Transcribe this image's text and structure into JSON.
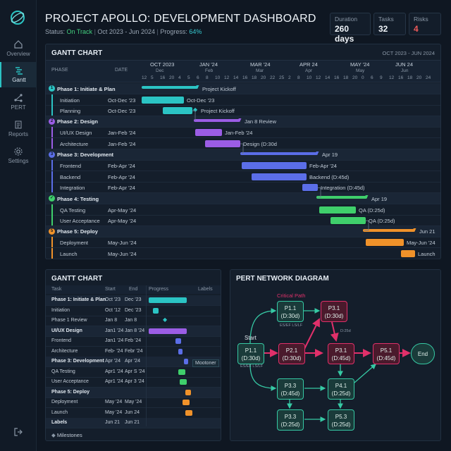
{
  "sidebar": {
    "items": [
      {
        "label": "Overview"
      },
      {
        "label": "Gantt"
      },
      {
        "label": "PERT"
      },
      {
        "label": "Reports"
      },
      {
        "label": "Settings"
      }
    ]
  },
  "header": {
    "title": "PROJECT APOLLO: DEVELOPMENT DASHBOARD",
    "status_label": "Status:",
    "status_value": "On Track",
    "dates": "Oct 2023 - Jun 2024",
    "progress_label": "Progress:",
    "progress_value": "64%"
  },
  "kpis": {
    "duration_label": "Duration",
    "duration_value": "260 days",
    "tasks_label": "Tasks",
    "tasks_value": "32",
    "risks_label": "Risks",
    "risks_value": "4"
  },
  "gantt": {
    "title": "GANTT CHART",
    "range": "OCT 2023 - JUN 2024",
    "col_phase": "PHASE",
    "col_date": "DATE",
    "months": [
      "OCT 2023",
      "JAN '24",
      "MAR '24",
      "APR 24",
      "MAY '24",
      "JUN 24"
    ],
    "submonths": [
      "Dec",
      "Feb",
      "Mar",
      "Apr",
      "May",
      "Jun"
    ],
    "days": [
      "12",
      "5",
      "16",
      "20",
      "4",
      "5",
      "6",
      "8",
      "10",
      "12",
      "14",
      "16",
      "18",
      "20",
      "22",
      "25",
      "2",
      "8",
      "10",
      "12",
      "14",
      "16",
      "18",
      "20",
      "0",
      "6",
      "9",
      "12",
      "16",
      "18",
      "20",
      "24"
    ],
    "rows": [
      {
        "label": "Phase 1: Initiate & Plan",
        "date": "",
        "num": "1",
        "bar_label": "Project Kickoff"
      },
      {
        "label": "Initiation",
        "date": "Oct-Dec '23",
        "bar_label": "Oct-Dec '23"
      },
      {
        "label": "Planning",
        "date": "Oct-Dec '23",
        "bar_label": "Project Kickoff"
      },
      {
        "label": "Phase 2: Design",
        "date": "",
        "num": "2",
        "bar_label": "Jan 8 Review"
      },
      {
        "label": "UI/UX Design",
        "date": "Jan-Feb '24",
        "bar_label": "Jan-Feb '24"
      },
      {
        "label": "Architecture",
        "date": "Jan-Feb '24",
        "bar_label": "Design (D:30d"
      },
      {
        "label": "Phase 3: Development",
        "date": "",
        "num": "3",
        "bar_label": "Apr 19"
      },
      {
        "label": "Frontend",
        "date": "Feb-Apr '24",
        "bar_label": "Feb-Apr '24"
      },
      {
        "label": "Backend",
        "date": "Feb-Apr '24",
        "bar_label": "Backend (D:45d)"
      },
      {
        "label": "Integration",
        "date": "Feb-Apr '24",
        "bar_label": "Integration (D:45d)"
      },
      {
        "label": "Phase 4: Testing",
        "date": "",
        "num": "✓",
        "bar_label": "Apr 19"
      },
      {
        "label": "QA Testing",
        "date": "Apr-May '24",
        "bar_label": "QA (D:25d)"
      },
      {
        "label": "User Acceptance",
        "date": "Apr-May '24",
        "bar_label": "QA (D:25d)"
      },
      {
        "label": "Phase 5: Deploy",
        "date": "",
        "num": "5",
        "bar_label": "Jun 21"
      },
      {
        "label": "Deployment",
        "date": "May-Jun '24",
        "bar_label": "May-Jun '24"
      },
      {
        "label": "Launch",
        "date": "May-Jun '24",
        "bar_label": "Launch"
      }
    ]
  },
  "gantt2": {
    "title": "GANTT CHART",
    "col_task": "Task",
    "col_start": "Start",
    "col_end": "End",
    "col_progress": "Progress",
    "col_labels": "Labels",
    "rows": [
      {
        "task": "Phase 1: Initiate & Plan",
        "start": "Oct '23",
        "end": "Dec '23"
      },
      {
        "task": "Initiation",
        "start": "Oct '12",
        "end": "Dec '23"
      },
      {
        "task": "Phase 1 Review",
        "start": "Jan 8",
        "end": "Jan 8"
      },
      {
        "task": "UI/UX Design",
        "start": "Jan1 '24",
        "end": "Jan 8 '24"
      },
      {
        "task": "Frontend",
        "start": "Jan1 '24",
        "end": "Feb '24"
      },
      {
        "task": "Architecture",
        "start": "Feb- '24",
        "end": "Febr '24"
      },
      {
        "task": "Phase 3: Development",
        "start": "Apr '24",
        "end": "Apr '24"
      },
      {
        "task": "QA Testing",
        "start": "Apr1 '24",
        "end": "Apr S '24"
      },
      {
        "task": "User Acceptance",
        "start": "Apr1 '24",
        "end": "Apr 3 '24"
      },
      {
        "task": "Phase 5: Deploy",
        "start": "",
        "end": ""
      },
      {
        "task": "Deployment",
        "start": "May '24",
        "end": "May '24"
      },
      {
        "task": "Launch",
        "start": "May '24",
        "end": "Jun 24"
      },
      {
        "task": "Labels",
        "start": "Jun 21",
        "end": "Jun 21"
      }
    ],
    "milestone_badge": "Mootoner",
    "legend": "Milestones"
  },
  "pert": {
    "title": "PERT NETWORK DIAGRAM",
    "critical_path": "Critical Path",
    "start": "Start",
    "end": "End",
    "es_ef": "ES/EF LS/LF",
    "dur": "D:25d",
    "nodes": [
      {
        "id": "P1.1",
        "dur": "(D:30d)"
      },
      {
        "id": "P1.1",
        "dur": "(D:30d)"
      },
      {
        "id": "P3.1",
        "dur": "(D:30d)"
      },
      {
        "id": "P2.1",
        "dur": "(D:30d)"
      },
      {
        "id": "P3.1",
        "dur": "(D:45d)"
      },
      {
        "id": "P5.1",
        "dur": "(D:45d)"
      },
      {
        "id": "P3.3",
        "dur": "(D:45d)"
      },
      {
        "id": "P4.1",
        "dur": "(D:25d)"
      },
      {
        "id": "P3.3",
        "dur": "(D:25d)"
      },
      {
        "id": "P5.3",
        "dur": "(D:25d)"
      }
    ]
  },
  "colors": {
    "teal": "#2bc4c4",
    "purple": "#9b5de5",
    "blue": "#5b6ee8",
    "green": "#3fcf6b",
    "orange": "#f0922a",
    "critical": "#e0306a"
  }
}
